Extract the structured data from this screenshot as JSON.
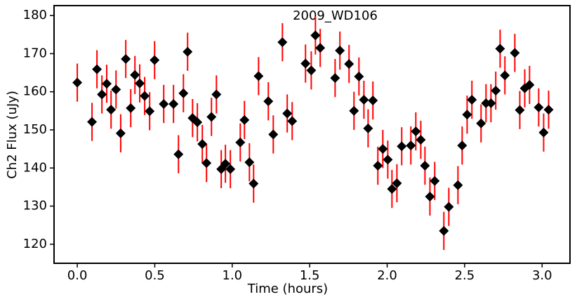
{
  "chart_data": {
    "type": "scatter",
    "title": "2009_WD106",
    "xlabel": "Time (hours)",
    "ylabel": "Ch2 Flux (uJy)",
    "x": [
      0.0,
      0.095,
      0.127,
      0.159,
      0.19,
      0.218,
      0.25,
      0.28,
      0.313,
      0.345,
      0.372,
      0.403,
      0.435,
      0.467,
      0.499,
      0.558,
      0.621,
      0.653,
      0.685,
      0.712,
      0.744,
      0.775,
      0.807,
      0.834,
      0.866,
      0.898,
      0.929,
      0.956,
      0.988,
      1.052,
      1.079,
      1.111,
      1.138,
      1.17,
      1.233,
      1.265,
      1.324,
      1.355,
      1.387,
      1.473,
      1.51,
      1.537,
      1.568,
      1.664,
      1.695,
      1.754,
      1.786,
      1.818,
      1.85,
      1.877,
      1.908,
      1.94,
      1.972,
      2.004,
      2.031,
      2.063,
      2.094,
      2.153,
      2.185,
      2.217,
      2.244,
      2.276,
      2.307,
      2.366,
      2.398,
      2.457,
      2.484,
      2.516,
      2.547,
      2.606,
      2.638,
      2.67,
      2.701,
      2.729,
      2.76,
      2.824,
      2.856,
      2.888,
      2.919,
      2.978,
      3.01,
      3.042
    ],
    "values": [
      162.4,
      152.1,
      165.9,
      159.3,
      162.1,
      155.3,
      160.6,
      149.1,
      168.6,
      155.7,
      164.4,
      162.2,
      158.9,
      154.9,
      168.3,
      156.8,
      156.8,
      143.6,
      159.6,
      170.5,
      153.1,
      152.0,
      146.3,
      141.3,
      153.4,
      159.3,
      139.7,
      141.1,
      139.7,
      146.7,
      152.6,
      141.5,
      135.9,
      164.1,
      157.5,
      148.8,
      173.0,
      154.3,
      152.3,
      167.4,
      165.6,
      174.8,
      171.5,
      163.6,
      170.8,
      167.3,
      155.0,
      164.0,
      157.9,
      150.4,
      157.7,
      140.6,
      145.0,
      142.2,
      134.5,
      136.0,
      145.7,
      145.9,
      149.6,
      147.4,
      140.6,
      132.5,
      136.6,
      123.5,
      129.8,
      135.5,
      145.9,
      154.0,
      157.9,
      151.7,
      157.0,
      157.0,
      160.3,
      171.3,
      164.3,
      170.2,
      155.2,
      160.9,
      161.8,
      155.9,
      149.3,
      155.3
    ],
    "yerr": 5,
    "color": "#000000",
    "error_color": "#ff0000",
    "xlim": [
      -0.15,
      3.18
    ],
    "ylim": [
      115.0,
      182.6
    ],
    "xticks": [
      {
        "value": 0,
        "label": "0.0"
      },
      0.5,
      {
        "value": 1,
        "label": "1.0"
      },
      1.5,
      {
        "value": 2,
        "label": "2.0"
      },
      2.5,
      {
        "value": 3,
        "label": "3.0"
      }
    ],
    "yticks": [
      120,
      130,
      140,
      150,
      160,
      170,
      180
    ]
  }
}
